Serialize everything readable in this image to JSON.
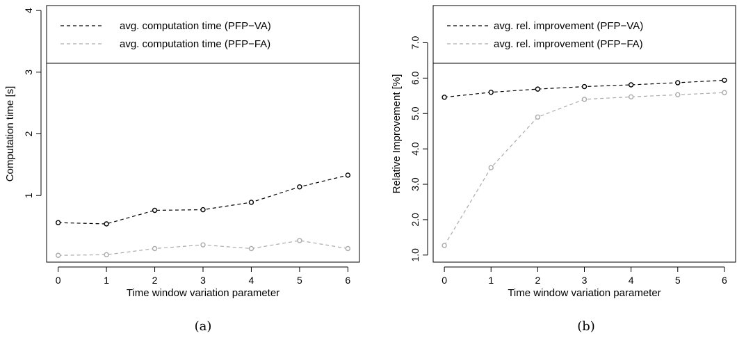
{
  "chart_data": [
    {
      "type": "line",
      "caption": "(a)",
      "xlabel": "Time window variation parameter",
      "ylabel": "Computation time [s]",
      "x": [
        0,
        1,
        2,
        3,
        4,
        5,
        6
      ],
      "xticks": [
        "0",
        "1",
        "2",
        "3",
        "4",
        "5",
        "6"
      ],
      "yticks": [
        "1",
        "2",
        "3",
        "4"
      ],
      "ytick_values": [
        1,
        2,
        3,
        4
      ],
      "ylim": [
        -0.08,
        4.08
      ],
      "xlim": [
        -0.24,
        6.24
      ],
      "legend_position": "top",
      "grid": false,
      "series": [
        {
          "name": "avg. computation time (PFP−VA)",
          "color": "#000000",
          "values": [
            0.56,
            0.54,
            0.76,
            0.77,
            0.89,
            1.14,
            1.33
          ]
        },
        {
          "name": "avg. computation time (PFP−FA)",
          "color": "#aaaaaa",
          "values": [
            0.03,
            0.04,
            0.14,
            0.2,
            0.14,
            0.27,
            0.14
          ]
        }
      ]
    },
    {
      "type": "line",
      "caption": "(b)",
      "xlabel": "Time window variation parameter",
      "ylabel": "Relative Improvement [%]",
      "x": [
        0,
        1,
        2,
        3,
        4,
        5,
        6
      ],
      "xticks": [
        "0",
        "1",
        "2",
        "3",
        "4",
        "5",
        "6"
      ],
      "yticks": [
        "1.0",
        "2.0",
        "3.0",
        "4.0",
        "5.0",
        "6.0",
        "7.0"
      ],
      "ytick_values": [
        1,
        2,
        3,
        4,
        5,
        6,
        7
      ],
      "ylim": [
        0.8,
        8.05
      ],
      "xlim": [
        -0.24,
        6.24
      ],
      "legend_position": "top",
      "grid": false,
      "series": [
        {
          "name": "avg. rel. improvement (PFP−VA)",
          "color": "#000000",
          "values": [
            5.46,
            5.6,
            5.69,
            5.76,
            5.81,
            5.87,
            5.94
          ]
        },
        {
          "name": "avg. rel. improvement (PFP−FA)",
          "color": "#aaaaaa",
          "values": [
            1.27,
            3.47,
            4.9,
            5.4,
            5.47,
            5.53,
            5.59
          ]
        }
      ]
    }
  ]
}
